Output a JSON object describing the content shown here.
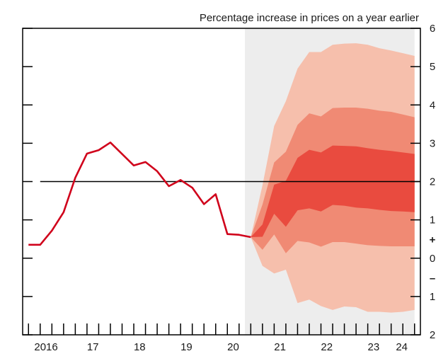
{
  "chart_data": {
    "type": "area",
    "title": "",
    "ylabel": "Percentage increase in prices on a year earlier",
    "xlabel": "",
    "ylim": [
      -2,
      6
    ],
    "xlim": [
      2015.5,
      2024.0
    ],
    "y_ticks": [
      {
        "value": 6,
        "label": "6"
      },
      {
        "value": 5,
        "label": "5"
      },
      {
        "value": 4,
        "label": "4"
      },
      {
        "value": 3,
        "label": "3"
      },
      {
        "value": 2,
        "label": "2"
      },
      {
        "value": 1,
        "label": "1"
      },
      {
        "value": 0,
        "label": "0"
      },
      {
        "value": -1,
        "label": "1"
      },
      {
        "value": -2,
        "label": "2"
      }
    ],
    "sign_labels": {
      "plus": "+",
      "minus": "–"
    },
    "x_labels": [
      {
        "value": 2016.0,
        "label": "2016"
      },
      {
        "value": 2017.0,
        "label": "17"
      },
      {
        "value": 2018.0,
        "label": "18"
      },
      {
        "value": 2019.0,
        "label": "19"
      },
      {
        "value": 2020.0,
        "label": "20"
      },
      {
        "value": 2021.0,
        "label": "21"
      },
      {
        "value": 2022.0,
        "label": "22"
      },
      {
        "value": 2023.0,
        "label": "23"
      },
      {
        "value": 2024.0,
        "label": "24"
      }
    ],
    "x_ticks": [
      2015.625,
      2015.875,
      2016.125,
      2016.375,
      2016.625,
      2016.875,
      2017.125,
      2017.375,
      2017.625,
      2017.875,
      2018.125,
      2018.375,
      2018.625,
      2018.875,
      2019.125,
      2019.375,
      2019.625,
      2019.875,
      2020.125,
      2020.375,
      2020.625,
      2020.875,
      2021.125,
      2021.375,
      2021.625,
      2021.875,
      2022.125,
      2022.375,
      2022.625,
      2022.875,
      2023.125,
      2023.375,
      2023.625,
      2023.875
    ],
    "target": 2.0,
    "projection_start": 2020.25,
    "series": [
      {
        "type": "line",
        "color": "#d0021b",
        "x": [
          2015.625,
          2015.875,
          2016.125,
          2016.375,
          2016.625,
          2016.875,
          2017.125,
          2017.375,
          2017.625,
          2017.875,
          2018.125,
          2018.375,
          2018.625,
          2018.875,
          2019.125,
          2019.375,
          2019.625,
          2019.875,
          2020.125,
          2020.375
        ],
        "values": [
          0.35,
          0.35,
          0.72,
          1.2,
          2.1,
          2.73,
          2.82,
          3.02,
          2.72,
          2.42,
          2.51,
          2.27,
          1.88,
          2.04,
          1.84,
          1.41,
          1.67,
          0.63,
          0.61,
          0.55
        ]
      }
    ],
    "fan": {
      "x": [
        2020.375,
        2020.625,
        2020.875,
        2021.125,
        2021.375,
        2021.625,
        2021.875,
        2022.125,
        2022.375,
        2022.625,
        2022.875,
        2023.125,
        2023.375,
        2023.625,
        2023.875
      ],
      "bands": [
        {
          "color": "#f6bfac",
          "upper": [
            0.55,
            1.9,
            3.45,
            4.1,
            4.95,
            5.38,
            5.38,
            5.57,
            5.6,
            5.61,
            5.57,
            5.48,
            5.42,
            5.35,
            5.28
          ],
          "lower": [
            0.55,
            -0.2,
            -0.4,
            -0.3,
            -1.17,
            -1.08,
            -1.25,
            -1.35,
            -1.26,
            -1.28,
            -1.4,
            -1.4,
            -1.42,
            -1.4,
            -1.35
          ]
        },
        {
          "color": "#f08a74",
          "upper": [
            0.55,
            1.4,
            2.5,
            2.78,
            3.48,
            3.78,
            3.7,
            3.92,
            3.93,
            3.93,
            3.9,
            3.85,
            3.82,
            3.75,
            3.68
          ],
          "lower": [
            0.55,
            0.22,
            0.62,
            0.13,
            0.45,
            0.41,
            0.3,
            0.42,
            0.42,
            0.38,
            0.34,
            0.32,
            0.31,
            0.31,
            0.31
          ]
        },
        {
          "color": "#e94b3f",
          "upper": [
            0.55,
            0.88,
            1.92,
            2.02,
            2.62,
            2.83,
            2.76,
            2.94,
            2.93,
            2.92,
            2.87,
            2.83,
            2.8,
            2.76,
            2.72
          ],
          "lower": [
            0.55,
            0.56,
            1.16,
            0.82,
            1.25,
            1.3,
            1.22,
            1.39,
            1.37,
            1.32,
            1.3,
            1.26,
            1.23,
            1.22,
            1.2
          ]
        }
      ]
    },
    "shading_color": "#ededed",
    "grid": false,
    "legend": "none"
  }
}
